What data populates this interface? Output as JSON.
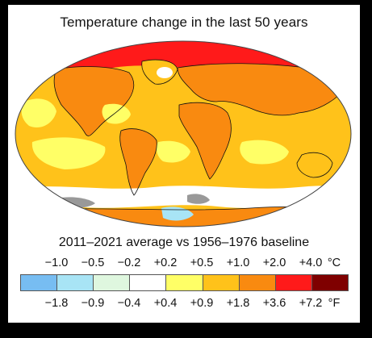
{
  "title": "Temperature change in the last 50 years",
  "subtitle": "2011–2021 average vs 1956–1976 baseline",
  "legend": {
    "celsius_ticks": [
      "−1.0",
      "−0.5",
      "−0.2",
      "+0.2",
      "+0.5",
      "+1.0",
      "+2.0",
      "+4.0"
    ],
    "celsius_unit": "°C",
    "fahrenheit_ticks": [
      "−1.8",
      "−0.9",
      "−0.4",
      "+0.4",
      "+0.9",
      "+1.8",
      "+3.6",
      "+7.2"
    ],
    "fahrenheit_unit": "°F",
    "colors": [
      "#77bdf2",
      "#a8e4f5",
      "#dff7df",
      "#ffffff",
      "#ffff66",
      "#ffc21a",
      "#f98a10",
      "#ff1a1a",
      "#7f0000"
    ]
  },
  "map_colors": {
    "ocean_base": "#ffc21a",
    "warm": "#f98a10",
    "light": "#ffff66",
    "hot": "#ff1a1a",
    "neutral": "#ffffff",
    "cool": "#a8e4f5",
    "nodata": "#999999"
  }
}
